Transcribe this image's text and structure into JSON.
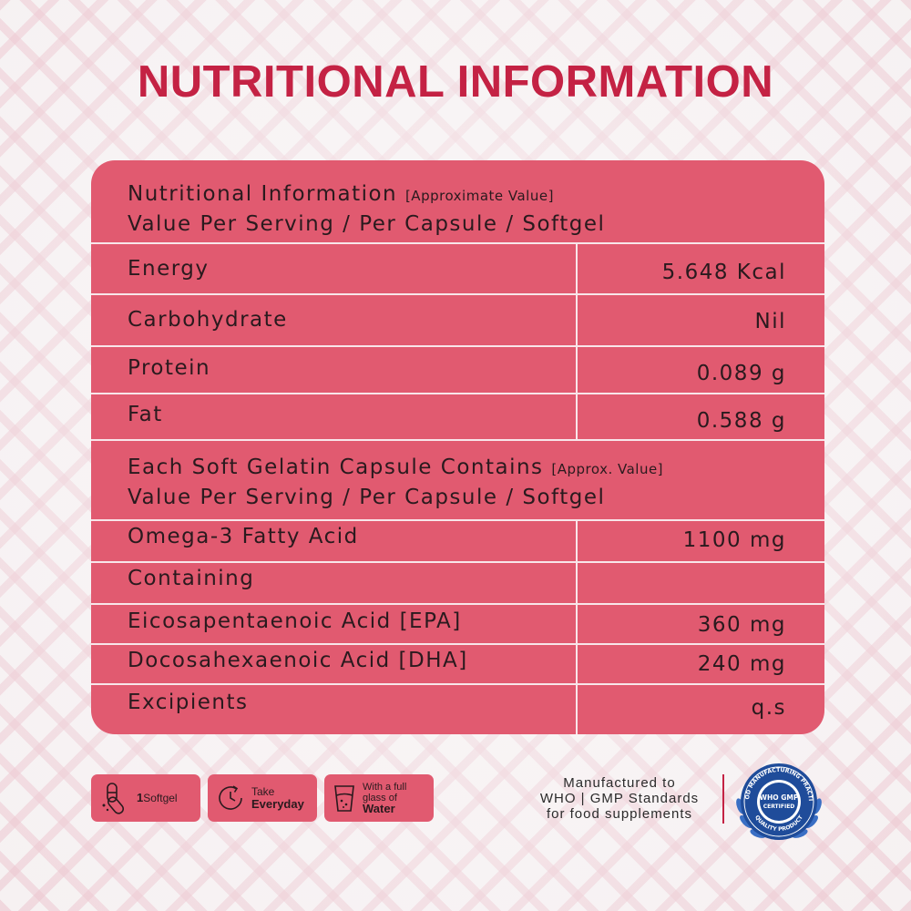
{
  "heading": "NUTRITIONAL INFORMATION",
  "table": {
    "header1": {
      "line1": "Nutritional Information",
      "line1_small": "[Approximate Value]",
      "line2": "Value Per Serving / Per Capsule / Softgel"
    },
    "rows1": [
      {
        "label": "Energy",
        "value": "5.648 Kcal"
      },
      {
        "label": "Carbohydrate",
        "value": "Nil"
      },
      {
        "label": "Protein",
        "value": "0.089 g"
      },
      {
        "label": "Fat",
        "value": "0.588 g"
      }
    ],
    "header2": {
      "line1": "Each Soft Gelatin Capsule Contains",
      "line1_small": "[Approx. Value]",
      "line2": "Value Per Serving / Per Capsule / Softgel"
    },
    "rows2": [
      {
        "label": "Omega-3 Fatty Acid",
        "value": "1100 mg"
      },
      {
        "label": "Containing",
        "value": ""
      },
      {
        "label": "Eicosapentaenoic Acid [EPA]",
        "value": "360 mg"
      },
      {
        "label": "Docosahexaenoic Acid [DHA]",
        "value": "240 mg"
      },
      {
        "label": "Excipients",
        "value": "q.s"
      }
    ]
  },
  "badges": [
    {
      "icon": "capsule-icon",
      "line1": "1",
      "line2": "Softgel"
    },
    {
      "icon": "clock-icon",
      "line1": "Take",
      "line2": "Everyday"
    },
    {
      "icon": "glass-icon",
      "line1": "With a full",
      "line2": "glass of",
      "line3": "Water"
    }
  ],
  "manufactured": {
    "line1": "Manufactured to",
    "line2": "WHO | GMP Standards",
    "line3": "for food supplements"
  },
  "seal": {
    "arc_top": "GOOD MANUFACTURING PRACTICE",
    "center1": "WHO GMP",
    "center2": "CERTIFIED",
    "arc_bottom": "QUALITY PRODUCT"
  },
  "colors": {
    "accent": "#c42244",
    "card": "#e15a70",
    "seal": "#1f4c9a"
  }
}
